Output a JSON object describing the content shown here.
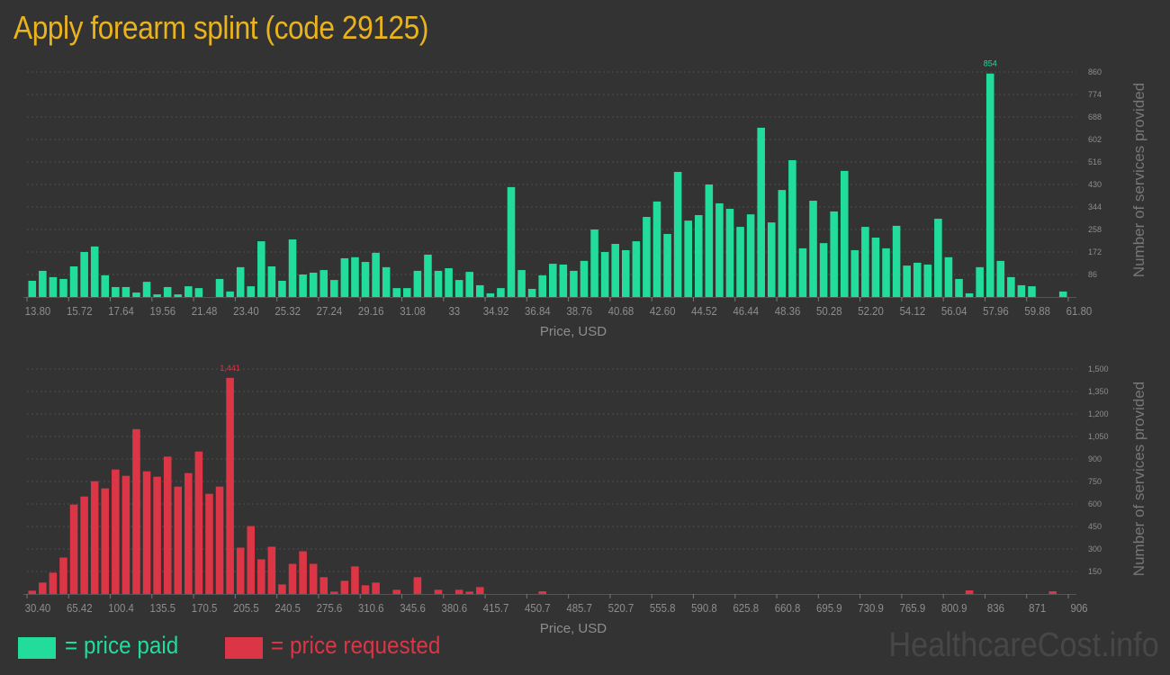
{
  "title": "Apply forearm splint (code 29125)",
  "legend": {
    "paid": "= price paid",
    "requested": "= price requested"
  },
  "watermark": "HealthcareCost.info",
  "colors": {
    "paid": "#21dc9a",
    "requested": "#dc3545",
    "title": "#e9b31d",
    "background": "#333333"
  },
  "chart_data": [
    {
      "type": "bar",
      "name": "price-paid",
      "xlabel": "Price, USD",
      "ylabel": "Number of services provided",
      "x_range": [
        13.8,
        61.8
      ],
      "ylim": [
        0,
        860
      ],
      "grid": true,
      "x_tick_labels": [
        "13.80",
        "15.72",
        "17.64",
        "19.56",
        "21.48",
        "23.40",
        "25.32",
        "27.24",
        "29.16",
        "31.08",
        "33",
        "34.92",
        "36.84",
        "38.76",
        "40.68",
        "42.60",
        "44.52",
        "46.44",
        "48.36",
        "50.28",
        "52.20",
        "54.12",
        "56.04",
        "57.96",
        "59.88",
        "61.80"
      ],
      "y_tick_labels": [
        "86",
        "172",
        "258",
        "344",
        "430",
        "516",
        "602",
        "688",
        "774",
        "860"
      ],
      "y_ticks": [
        86,
        172,
        258,
        344,
        430,
        516,
        602,
        688,
        774,
        860
      ],
      "peak_label": "854",
      "peak_index": 92,
      "values": [
        62,
        100,
        76,
        69,
        117,
        172,
        193,
        83,
        38,
        38,
        17,
        58,
        10,
        38,
        10,
        41,
        34,
        0,
        69,
        21,
        114,
        41,
        213,
        117,
        62,
        220,
        86,
        93,
        103,
        65,
        148,
        152,
        134,
        169,
        114,
        34,
        34,
        100,
        162,
        100,
        110,
        65,
        96,
        45,
        14,
        34,
        420,
        103,
        31,
        83,
        127,
        124,
        100,
        138,
        258,
        172,
        203,
        179,
        213,
        306,
        365,
        241,
        478,
        292,
        313,
        430,
        358,
        337,
        268,
        316,
        647,
        285,
        409,
        523,
        186,
        368,
        206,
        327,
        482,
        179,
        268,
        227,
        186,
        272,
        120,
        131,
        124,
        299,
        152,
        69,
        14,
        114,
        854,
        138,
        76,
        45,
        41,
        0,
        0,
        21
      ]
    },
    {
      "type": "bar",
      "name": "price-requested",
      "xlabel": "Price, USD",
      "ylabel": "Number of services provided",
      "x_range": [
        30.4,
        906
      ],
      "ylim": [
        0,
        1500
      ],
      "grid": true,
      "x_tick_labels": [
        "30.40",
        "65.42",
        "100.4",
        "135.5",
        "170.5",
        "205.5",
        "240.5",
        "275.6",
        "310.6",
        "345.6",
        "380.6",
        "415.7",
        "450.7",
        "485.7",
        "520.7",
        "555.8",
        "590.8",
        "625.8",
        "660.8",
        "695.9",
        "730.9",
        "765.9",
        "800.9",
        "836",
        "871",
        "906"
      ],
      "y_tick_labels": [
        "150",
        "300",
        "450",
        "600",
        "750",
        "900",
        "1,050",
        "1,200",
        "1,350",
        "1,500"
      ],
      "y_ticks": [
        150,
        300,
        450,
        600,
        750,
        900,
        1050,
        1200,
        1350,
        1500
      ],
      "peak_label": "1,441",
      "peak_index": 19,
      "values": [
        22,
        76,
        142,
        243,
        596,
        650,
        752,
        704,
        830,
        788,
        1099,
        818,
        782,
        916,
        716,
        806,
        950,
        668,
        716,
        1441,
        309,
        453,
        231,
        315,
        64,
        201,
        285,
        201,
        112,
        16,
        88,
        184,
        58,
        76,
        0,
        28,
        0,
        112,
        0,
        28,
        0,
        28,
        16,
        46,
        0,
        0,
        0,
        0,
        0,
        18,
        0,
        0,
        0,
        0,
        0,
        0,
        0,
        0,
        0,
        0,
        0,
        0,
        0,
        0,
        0,
        0,
        0,
        0,
        0,
        0,
        0,
        0,
        0,
        0,
        0,
        0,
        0,
        0,
        0,
        0,
        0,
        0,
        0,
        0,
        0,
        0,
        0,
        0,
        0,
        0,
        24,
        0,
        0,
        0,
        0,
        0,
        0,
        0,
        18,
        0
      ]
    }
  ]
}
